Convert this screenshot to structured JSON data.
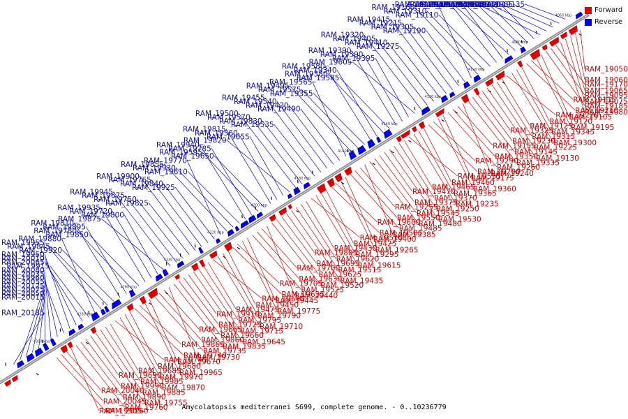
{
  "caption": "Amycolatopsis mediterranei S699, complete genome. - 0..10236779",
  "legend": [
    {
      "label": "Forward",
      "color": "#e00000"
    },
    {
      "label": "Reverse",
      "color": "#0000ee"
    }
  ],
  "colors": {
    "forward": "#e00000",
    "reverse": "#0000ee",
    "axis": "#8a8a8a"
  },
  "ticks": [
    "4060 kbp",
    "4080 kbp",
    "4100 kbp",
    "4120 kbp",
    "4140 kbp",
    "4160 kbp",
    "4180 kbp",
    "4200 kbp",
    "4220 kbp",
    "4240 kbp",
    "4260 kbp",
    "4280 kbp",
    "4300 kbp"
  ],
  "labels_top": [
    "RAM_19135",
    "RAM_19085",
    "RAM_19020",
    "RAM_19280",
    "RAM_19245",
    "RAM_19100",
    "RAM_19045",
    "RAM_19330",
    "RAM_19165",
    "RAM_19090",
    "RAM_19285",
    "RAM_19205",
    "RAM_19110",
    "RAM_19310",
    "RAM_19160",
    "RAM_19270",
    "RAM_19190",
    "RAM_19305",
    "RAM_19215",
    "RAM_19415",
    "RAM_19275",
    "RAM_19410",
    "RAM_19405",
    "RAM_19320",
    "RAM_19605",
    "RAM_19395",
    "RAM_19590",
    "RAM_19390",
    "RAM_19585",
    "RAM_19380",
    "RAM_19340",
    "RAM_19580",
    "RAM_19355",
    "RAM_19575",
    "RAM_19495",
    "RAM_19565",
    "RAM_19490",
    "RAM_19420",
    "RAM_19540",
    "RAM_19455",
    "RAM_19535",
    "RAM_19830",
    "RAM_19570",
    "RAM_19500",
    "RAM_19820",
    "RAM_19655",
    "RAM_19560",
    "RAM_19815",
    "RAM_19650",
    "RAM_19595",
    "RAM_19785",
    "RAM_19940",
    "RAM_19610",
    "RAM_19930",
    "RAM_19855",
    "RAM_19770",
    "RAM_19925",
    "RAM_19840",
    "RAM_19765",
    "RAM_19900",
    "RAM_19825",
    "RAM_19750",
    "RAM_19675",
    "RAM_19945",
    "RAM_19875",
    "RAM_19800",
    "RAM_19720",
    "RAM_19935",
    "RAM_19850",
    "RAM_19780",
    "RAM_19895",
    "RAM_19810",
    "RAM_19920",
    "RAM_19845",
    "RAM_19955",
    "RAM_19880",
    "RAM_19915",
    "RAM_20065",
    "RAM_20010",
    "RAM_19950",
    "RAM_20055",
    "RAM_19960",
    "RAM_20035",
    "RAM_20080",
    "RAM_20015",
    "RAM_20050",
    "RAM_20075",
    "RAM_20125",
    "RAM_20185"
  ],
  "labels_bottom": [
    "RAM_19050",
    "RAM_19060",
    "RAM_19065",
    "RAM_19075",
    "RAM_19080",
    "RAM_19170",
    "RAM_19095",
    "RAM_19185",
    "RAM_19105",
    "RAM_19195",
    "RAM_19115",
    "RAM_19210",
    "RAM_19120",
    "RAM_19345",
    "RAM_19300",
    "RAM_19220",
    "RAM_19125",
    "RAM_19315",
    "RAM_19225",
    "RAM_19130",
    "RAM_19325",
    "RAM_19230",
    "RAM_19145",
    "RAM_19335",
    "RAM_19240",
    "RAM_19155",
    "RAM_19350",
    "RAM_19260",
    "RAM_19175",
    "RAM_19360",
    "RAM_19290",
    "RAM_19200",
    "RAM_19460",
    "RAM_19365",
    "RAM_19235",
    "RAM_19555",
    "RAM_19465",
    "RAM_19370",
    "RAM_19250",
    "RAM_19530",
    "RAM_19470",
    "RAM_19375",
    "RAM_19545",
    "RAM_19480",
    "RAM_19385",
    "RAM_19255",
    "RAM_19550",
    "RAM_19485",
    "RAM_19400",
    "RAM_19265",
    "RAM_19600",
    "RAM_19505",
    "RAM_19425",
    "RAM_19295",
    "RAM_19615",
    "RAM_19510",
    "RAM_19430",
    "RAM_19620",
    "RAM_19515",
    "RAM_19435",
    "RAM_19805",
    "RAM_19695",
    "RAM_19625",
    "RAM_19520",
    "RAM_19440",
    "RAM_19700",
    "RAM_19630",
    "RAM_19525",
    "RAM_19445",
    "RAM_19775",
    "RAM_19705",
    "RAM_19635",
    "RAM_19450",
    "RAM_19790",
    "RAM_19710",
    "RAM_19640",
    "RAM_19475",
    "RAM_19795",
    "RAM_19715",
    "RAM_19645",
    "RAM_19910",
    "RAM_19725",
    "RAM_19660",
    "RAM_19835",
    "RAM_19730",
    "RAM_19665",
    "RAM_19860",
    "RAM_19735",
    "RAM_19670",
    "RAM_19965",
    "RAM_19865",
    "RAM_19740",
    "RAM_19680",
    "RAM_19970",
    "RAM_19870",
    "RAM_19745",
    "RAM_19685",
    "RAM_19985",
    "RAM_19885",
    "RAM_19755",
    "RAM_19690",
    "RAM_19990",
    "RAM_19890",
    "RAM_19760",
    "RAM_19905",
    "RAM_20040",
    "RAM_20045",
    "RAM_20060"
  ]
}
